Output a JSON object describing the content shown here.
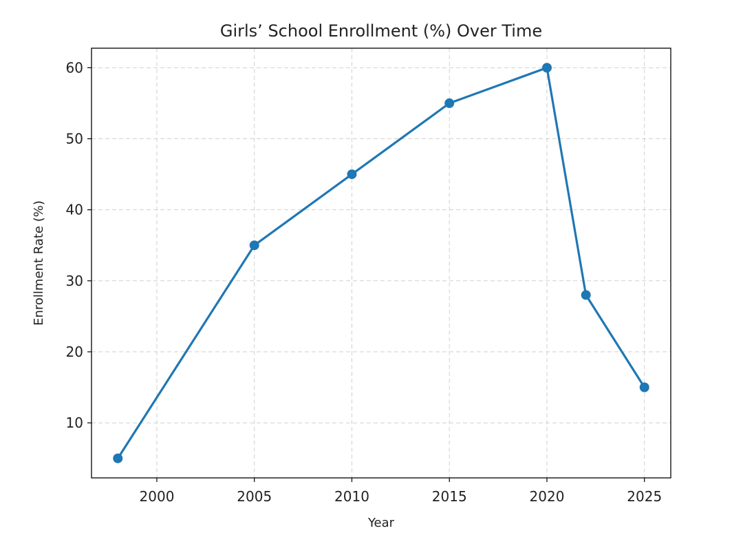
{
  "chart_data": {
    "type": "line",
    "title": "Girls’ School Enrollment (%) Over Time",
    "xlabel": "Year",
    "ylabel": "Enrollment Rate (%)",
    "x": [
      1998,
      2005,
      2010,
      2015,
      2020,
      2022,
      2025
    ],
    "series": [
      {
        "name": "Enrollment Rate",
        "values": [
          5,
          35,
          45,
          55,
          60,
          28,
          15
        ],
        "color": "#1f77b4",
        "marker": "circle"
      }
    ],
    "xlim": [
      1996.65,
      2026.35
    ],
    "ylim": [
      2.25,
      62.75
    ],
    "xticks": [
      2000,
      2005,
      2010,
      2015,
      2020,
      2025
    ],
    "yticks": [
      10,
      20,
      30,
      40,
      50,
      60
    ],
    "grid": true,
    "grid_style": "dashed"
  }
}
